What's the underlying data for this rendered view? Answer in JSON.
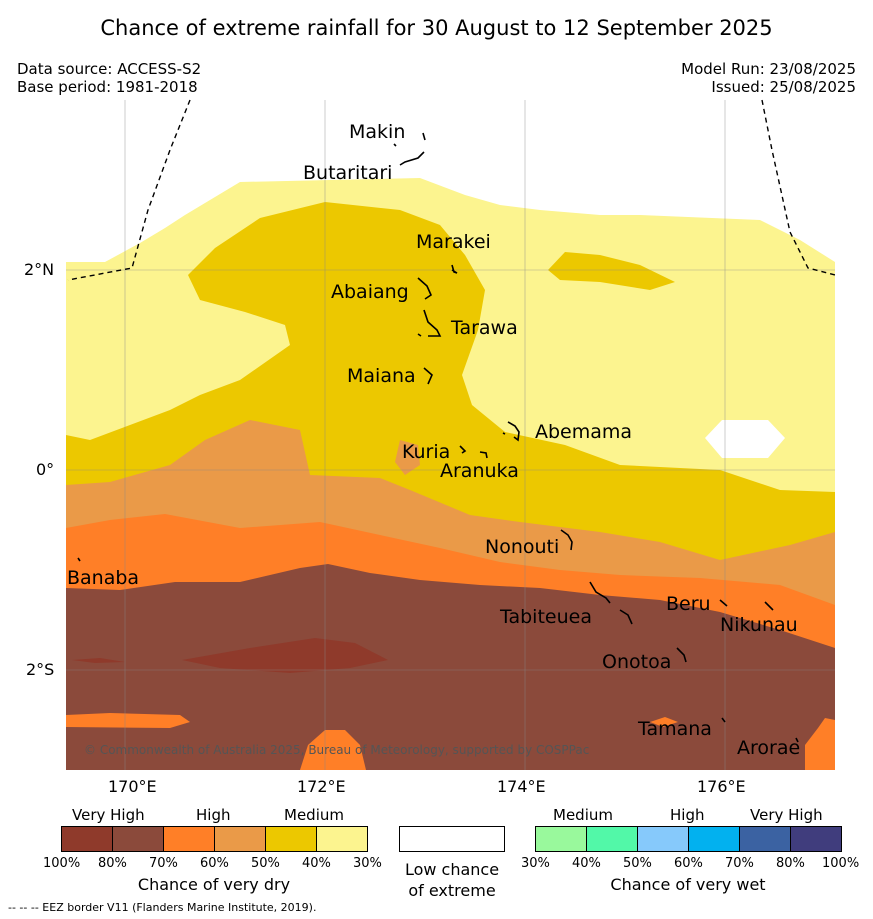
{
  "title": "Chance of extreme rainfall for 30 August to 12 September 2025",
  "header": {
    "data_source": "Data source: ACCESS-S2",
    "base_period": "Base period: 1981-2018",
    "model_run": "Model Run: 23/08/2025",
    "issued": "Issued: 25/08/2025"
  },
  "axes": {
    "x_ticks": [
      "170°E",
      "172°E",
      "174°E",
      "176°E"
    ],
    "y_ticks": [
      "2°N",
      "0°",
      "2°S"
    ]
  },
  "places": {
    "makin": "Makin",
    "butaritari": "Butaritari",
    "marakei": "Marakei",
    "abaiang": "Abaiang",
    "tarawa": "Tarawa",
    "maiana": "Maiana",
    "abemama": "Abemama",
    "kuria": "Kuria",
    "aranuka": "Aranuka",
    "nonouti": "Nonouti",
    "banaba": "Banaba",
    "beru": "Beru",
    "tabiteuea": "Tabiteuea",
    "nikunau": "Nikunau",
    "onotoa": "Onotoa",
    "tamana": "Tamana",
    "arorae": "Arorae"
  },
  "credit": "© Commonwealth of Australia 2025, Bureau of Meteorology, supported by COSPPac",
  "legend": {
    "dry": {
      "categories": [
        "Very High",
        "High",
        "Medium"
      ],
      "ticks": [
        "100%",
        "80%",
        "70%",
        "60%",
        "50%",
        "40%",
        "30%"
      ],
      "caption": "Chance of very dry",
      "colors": [
        "#8f3a2b",
        "#8b4a3b",
        "#ff7f27",
        "#ea9a48",
        "#ecc800",
        "#fcf48f"
      ]
    },
    "low": {
      "line1": "Low chance",
      "line2": "of extreme"
    },
    "wet": {
      "categories": [
        "Medium",
        "High",
        "Very High"
      ],
      "ticks": [
        "30%",
        "40%",
        "50%",
        "60%",
        "70%",
        "80%",
        "100%"
      ],
      "caption": "Chance of very wet",
      "colors": [
        "#99f99c",
        "#52f8a8",
        "#86c9fb",
        "#02b1ef",
        "#3b62a2",
        "#403d7d"
      ]
    }
  },
  "eez_note": "-- -- -- EEZ border V11 (Flanders Marine Institute, 2019)."
}
